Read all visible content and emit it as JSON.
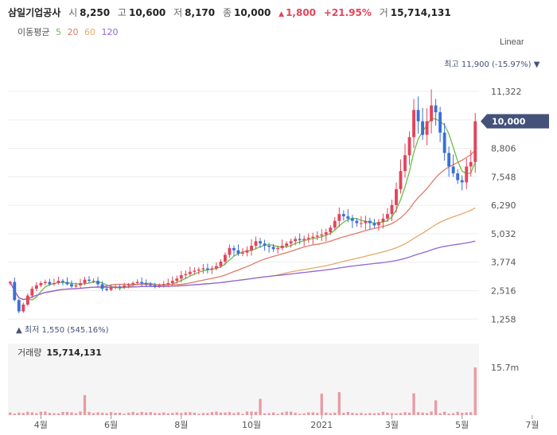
{
  "header": {
    "name": "삼일기업공사",
    "open_label": "시",
    "open": "8,250",
    "high_label": "고",
    "high": "10,600",
    "low_label": "저",
    "low": "8,170",
    "close_label": "종",
    "close": "10,000",
    "change": "1,800",
    "change_pct": "+21.95%",
    "volume_label": "거",
    "volume": "15,714,131"
  },
  "ma_legend": {
    "title": "이동평균",
    "items": [
      {
        "label": "5",
        "color": "#6abf4b"
      },
      {
        "label": "20",
        "color": "#e07a68"
      },
      {
        "label": "60",
        "color": "#e6a86a"
      },
      {
        "label": "120",
        "color": "#8e66d6"
      }
    ]
  },
  "scale_button": "Linear",
  "chart_data": {
    "type": "candlestick",
    "y_ticks": [
      "11,322",
      "10,064",
      "8,806",
      "7,548",
      "6,290",
      "5,032",
      "3,774",
      "2,516",
      "1,258"
    ],
    "y_tick_values": [
      11322,
      10064,
      8806,
      7548,
      6290,
      5032,
      3774,
      2516,
      1258
    ],
    "ylim": [
      600,
      12900
    ],
    "x_ticks": [
      "4월",
      "6월",
      "8월",
      "10월",
      "2021",
      "3월",
      "5월",
      "7월"
    ],
    "x_tick_index": [
      7,
      23,
      39,
      55,
      71,
      87,
      103,
      119
    ],
    "current_price": "10,000",
    "current_value": 10000,
    "max_label": {
      "text": "최고 11,900 (-15.97%)",
      "value": 11900,
      "index": 120
    },
    "min_label": {
      "text": "최저 1,550 (545.16%)",
      "value": 1550,
      "index": 3
    },
    "close_series": [
      2900,
      2100,
      1600,
      1900,
      2300,
      2600,
      2750,
      2850,
      2900,
      2800,
      2850,
      2950,
      2900,
      2800,
      2700,
      2750,
      2850,
      3000,
      2950,
      2950,
      2800,
      2600,
      2550,
      2650,
      2700,
      2650,
      2750,
      2800,
      2850,
      2900,
      2850,
      2800,
      2750,
      2700,
      2750,
      2800,
      2850,
      2950,
      3050,
      3200,
      3250,
      3350,
      3400,
      3450,
      3500,
      3450,
      3500,
      3600,
      3800,
      4100,
      4400,
      4300,
      4150,
      4200,
      4300,
      4500,
      4700,
      4600,
      4500,
      4450,
      4350,
      4400,
      4500,
      4600,
      4700,
      4800,
      4750,
      4800,
      4850,
      4900,
      4950,
      5000,
      5100,
      5300,
      5600,
      5900,
      5800,
      5700,
      5600,
      5500,
      5500,
      5600,
      5500,
      5400,
      5550,
      5700,
      5900,
      6300,
      7000,
      7800,
      8500,
      9300,
      10500,
      10000,
      9400,
      10000,
      10700,
      10400,
      9500,
      8600,
      8000,
      7700,
      7400,
      7300,
      8000,
      8200,
      10000
    ],
    "volume": {
      "label": "거래량",
      "value": "15,714,131",
      "axis_max_label": "15.7m",
      "max": 15.7
    }
  }
}
